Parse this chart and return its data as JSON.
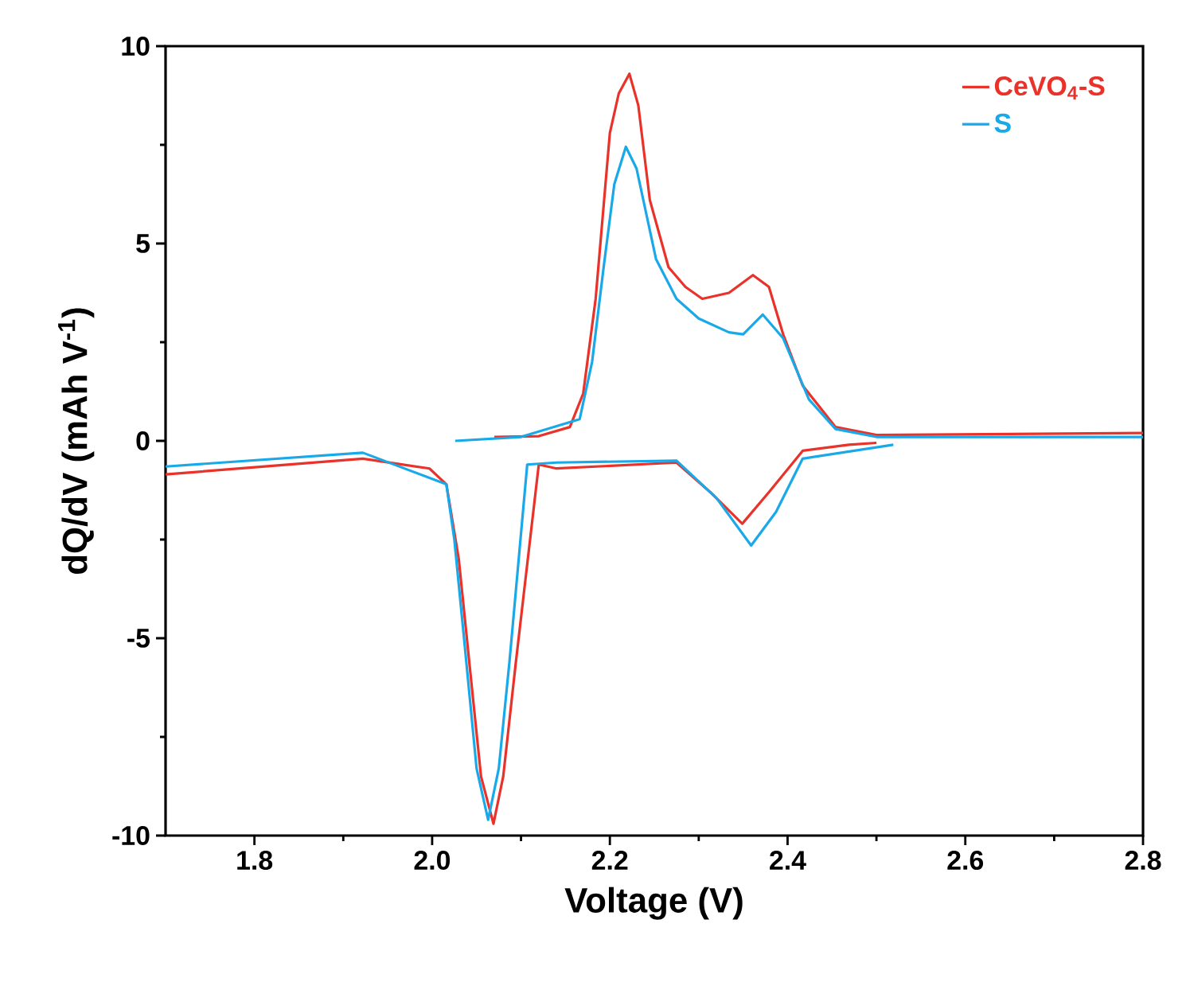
{
  "chart_data": {
    "type": "line",
    "xlabel": "Voltage (V)",
    "ylabel": "dQ/dV (mAh V$^{-1}$)",
    "xlim": [
      1.7,
      2.8
    ],
    "ylim": [
      -10,
      10
    ],
    "xticks": [
      1.8,
      {
        "value": 2.0,
        "label": "2.0"
      },
      2.2,
      2.4,
      2.6,
      2.8
    ],
    "yticks": [
      -10,
      -5,
      0,
      5,
      10
    ],
    "legend": "top right",
    "grid": false,
    "marker": "none",
    "line_style": "solid",
    "series": [
      {
        "name": "CeVO$_{4}$-S",
        "color": "#e8322a",
        "x": [
          2.07,
          2.12,
          2.155,
          2.17,
          2.184,
          2.2,
          2.21,
          2.222,
          2.232,
          2.245,
          2.266,
          2.285,
          2.304,
          2.334,
          2.361,
          2.379,
          2.395,
          2.417,
          2.454,
          2.5,
          2.8
        ],
        "values": [
          0.1,
          0.12,
          0.35,
          1.2,
          3.6,
          7.8,
          8.8,
          9.3,
          8.5,
          6.1,
          4.4,
          3.9,
          3.6,
          3.75,
          4.2,
          3.9,
          2.7,
          1.4,
          0.35,
          0.15,
          0.2
        ]
      },
      {
        "name": "S",
        "color": "#1aa9e8",
        "x": [
          2.026,
          2.1,
          2.166,
          2.18,
          2.193,
          2.205,
          2.218,
          2.23,
          2.252,
          2.275,
          2.3,
          2.334,
          2.35,
          2.372,
          2.395,
          2.424,
          2.454,
          2.5,
          2.8
        ],
        "values": [
          0,
          0.1,
          0.55,
          2.0,
          4.4,
          6.5,
          7.45,
          6.9,
          4.6,
          3.6,
          3.1,
          2.75,
          2.7,
          3.2,
          2.6,
          1.05,
          0.3,
          0.1,
          0.1
        ]
      },
      {
        "color": "#e8322a",
        "x": [
          1.7,
          1.922,
          1.997,
          2.016,
          2.03,
          2.042,
          2.055,
          2.069,
          2.08,
          2.094,
          2.12,
          2.14,
          2.275,
          2.313,
          2.349,
          2.379,
          2.417,
          2.469,
          2.5
        ],
        "values": [
          -0.85,
          -0.45,
          -0.7,
          -1.1,
          -3,
          -5.65,
          -8.5,
          -9.7,
          -8.5,
          -5.65,
          -0.6,
          -0.7,
          -0.55,
          -1.3,
          -2.1,
          -1.3,
          -0.25,
          -0.1,
          -0.05
        ]
      },
      {
        "color": "#1aa9e8",
        "x": [
          1.7,
          1.922,
          2.016,
          2.025,
          2.035,
          2.05,
          2.063,
          2.075,
          2.087,
          2.107,
          2.14,
          2.275,
          2.32,
          2.359,
          2.387,
          2.417,
          2.519
        ],
        "values": [
          -0.65,
          -0.3,
          -1.1,
          -2.5,
          -4.8,
          -8.3,
          -9.6,
          -8.3,
          -5.6,
          -0.6,
          -0.55,
          -0.5,
          -1.45,
          -2.65,
          -1.8,
          -0.45,
          -0.1
        ]
      }
    ]
  }
}
